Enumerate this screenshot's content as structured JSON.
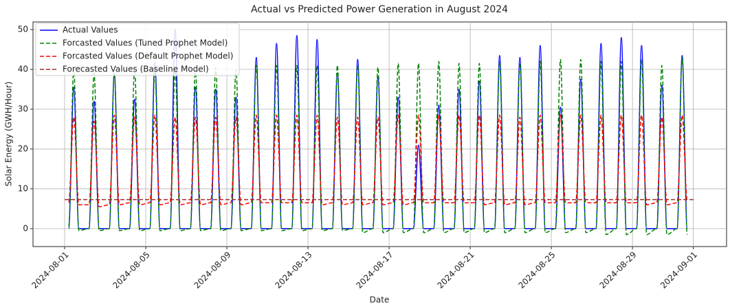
{
  "chart_data": {
    "type": "line",
    "title": "Actual vs Predicted Power Generation in August 2024",
    "x_label": "Date",
    "y_label": "Solar Energy (GWH/Hour)",
    "xlim": [
      -1.56,
      32.64
    ],
    "ylim": [
      -4.5,
      51.9
    ],
    "xticks": [
      {
        "value": 0,
        "label": "2024-08-01"
      },
      {
        "value": 4,
        "label": "2024-08-05"
      },
      {
        "value": 8,
        "label": "2024-08-09"
      },
      {
        "value": 12,
        "label": "2024-08-13"
      },
      {
        "value": 16,
        "label": "2024-08-17"
      },
      {
        "value": 20,
        "label": "2024-08-21"
      },
      {
        "value": 24,
        "label": "2024-08-25"
      },
      {
        "value": 28,
        "label": "2024-08-29"
      },
      {
        "value": 31,
        "label": "2024-09-01"
      }
    ],
    "yticks": [
      0,
      10,
      20,
      30,
      40,
      50
    ],
    "grid": true,
    "legend": "upper-left",
    "x": [
      0.2,
      0.45,
      0.7,
      1.2,
      1.45,
      1.7,
      2.2,
      2.45,
      2.7,
      3.2,
      3.45,
      3.7,
      4.2,
      4.45,
      4.7,
      5.2,
      5.45,
      5.7,
      6.2,
      6.45,
      6.7,
      7.2,
      7.45,
      7.7,
      8.2,
      8.45,
      8.7,
      9.2,
      9.45,
      9.7,
      10.2,
      10.45,
      10.7,
      11.2,
      11.45,
      11.7,
      12.2,
      12.45,
      12.7,
      13.2,
      13.45,
      13.7,
      14.2,
      14.45,
      14.7,
      15.2,
      15.45,
      15.7,
      16.2,
      16.45,
      16.7,
      17.2,
      17.45,
      17.7,
      18.2,
      18.45,
      18.7,
      19.2,
      19.45,
      19.7,
      20.2,
      20.45,
      20.7,
      21.2,
      21.45,
      21.7,
      22.2,
      22.45,
      22.7,
      23.2,
      23.45,
      23.7,
      24.2,
      24.45,
      24.7,
      25.2,
      25.45,
      25.7,
      26.2,
      26.45,
      26.7,
      27.2,
      27.45,
      27.7,
      28.2,
      28.45,
      28.7,
      29.2,
      29.45,
      29.7,
      30.2,
      30.45,
      30.7
    ],
    "series": [
      {
        "name": "Actual Values",
        "color": "#0000ff",
        "linestyle": "solid",
        "values": [
          0,
          35.5,
          0,
          0,
          32,
          0,
          0,
          39,
          0,
          0,
          32.5,
          0,
          0,
          42,
          0,
          0,
          50,
          0,
          0,
          35.5,
          0,
          0,
          35,
          0,
          0,
          33,
          0,
          0,
          43,
          0,
          0,
          46.5,
          0,
          0,
          48.5,
          0,
          0,
          47.5,
          0,
          0,
          39,
          0,
          0,
          42.5,
          0,
          0,
          38,
          0,
          0,
          33,
          0,
          0,
          21,
          0,
          0,
          31,
          0,
          0,
          35,
          0,
          0,
          37,
          0,
          0,
          43.5,
          0,
          0,
          43,
          0,
          0,
          46,
          0,
          0,
          30.5,
          0,
          0,
          37.5,
          0,
          0,
          46.5,
          0,
          0,
          48,
          0,
          0,
          46,
          0,
          0,
          36,
          0,
          0,
          43.5,
          0
        ]
      },
      {
        "name": "Forcasted Values (Tuned Prophet Model)",
        "color": "#008000",
        "linestyle": "dashed",
        "values": [
          0.5,
          40,
          -0.5,
          0,
          39,
          -0.5,
          0,
          39,
          -0.5,
          0,
          40,
          -0.5,
          0,
          40,
          -0.5,
          0,
          40,
          -0.5,
          0,
          40,
          -0.5,
          0,
          40.5,
          -0.5,
          0,
          40,
          -0.5,
          0,
          41,
          -0.5,
          0,
          41,
          -0.5,
          0,
          41,
          -0.5,
          0,
          41,
          -0.5,
          0,
          41,
          -0.5,
          0,
          41,
          -1,
          0,
          40.5,
          -1,
          0,
          41.5,
          -1,
          0,
          41.5,
          -1,
          0,
          42,
          -1,
          0,
          41.5,
          -1,
          0,
          41.5,
          -1,
          0,
          42,
          -1,
          0,
          41.5,
          -1,
          0,
          42,
          -1,
          0,
          42.5,
          -1,
          0,
          42.5,
          -1,
          0,
          42,
          -1.5,
          0,
          42,
          -1.5,
          0,
          42.5,
          -1.5,
          0,
          41,
          -1.5,
          0,
          43,
          -1.5
        ]
      },
      {
        "name": "Forcasted Values (Default Prophet Model)",
        "color": "#ff0000",
        "linestyle": "dashed",
        "values": [
          6.5,
          28,
          6,
          6,
          27,
          5.5,
          6,
          28.5,
          6,
          6.5,
          28,
          6,
          6.5,
          28.5,
          6,
          6.5,
          28,
          6,
          6.5,
          28,
          6,
          6.5,
          28,
          6,
          6.5,
          28,
          6,
          6.5,
          28.5,
          6.5,
          6.5,
          28.5,
          6.5,
          6.5,
          28.5,
          6.5,
          6.5,
          28.5,
          6,
          6.5,
          28,
          6,
          6.5,
          28,
          6,
          6.5,
          28,
          6,
          6.5,
          28.5,
          6,
          6.5,
          28.5,
          6.5,
          6.5,
          28.5,
          6.5,
          6.5,
          28.5,
          6.5,
          6.5,
          28.5,
          6,
          6.5,
          28.5,
          6,
          6.5,
          28,
          6,
          6.5,
          28.5,
          6.5,
          6.5,
          28.5,
          6.5,
          6.5,
          28.5,
          6.5,
          6.5,
          28.5,
          6.5,
          6.5,
          28.5,
          6.5,
          6.5,
          28.5,
          6,
          6.5,
          28,
          6,
          6.5,
          28.5,
          7
        ]
      },
      {
        "name": "Forecasted Values (Baseline Model)",
        "color": "#a52a2a",
        "linestyle": "dashed",
        "x": [
          0,
          31.04
        ],
        "values": [
          7.3,
          7.3
        ]
      }
    ]
  }
}
